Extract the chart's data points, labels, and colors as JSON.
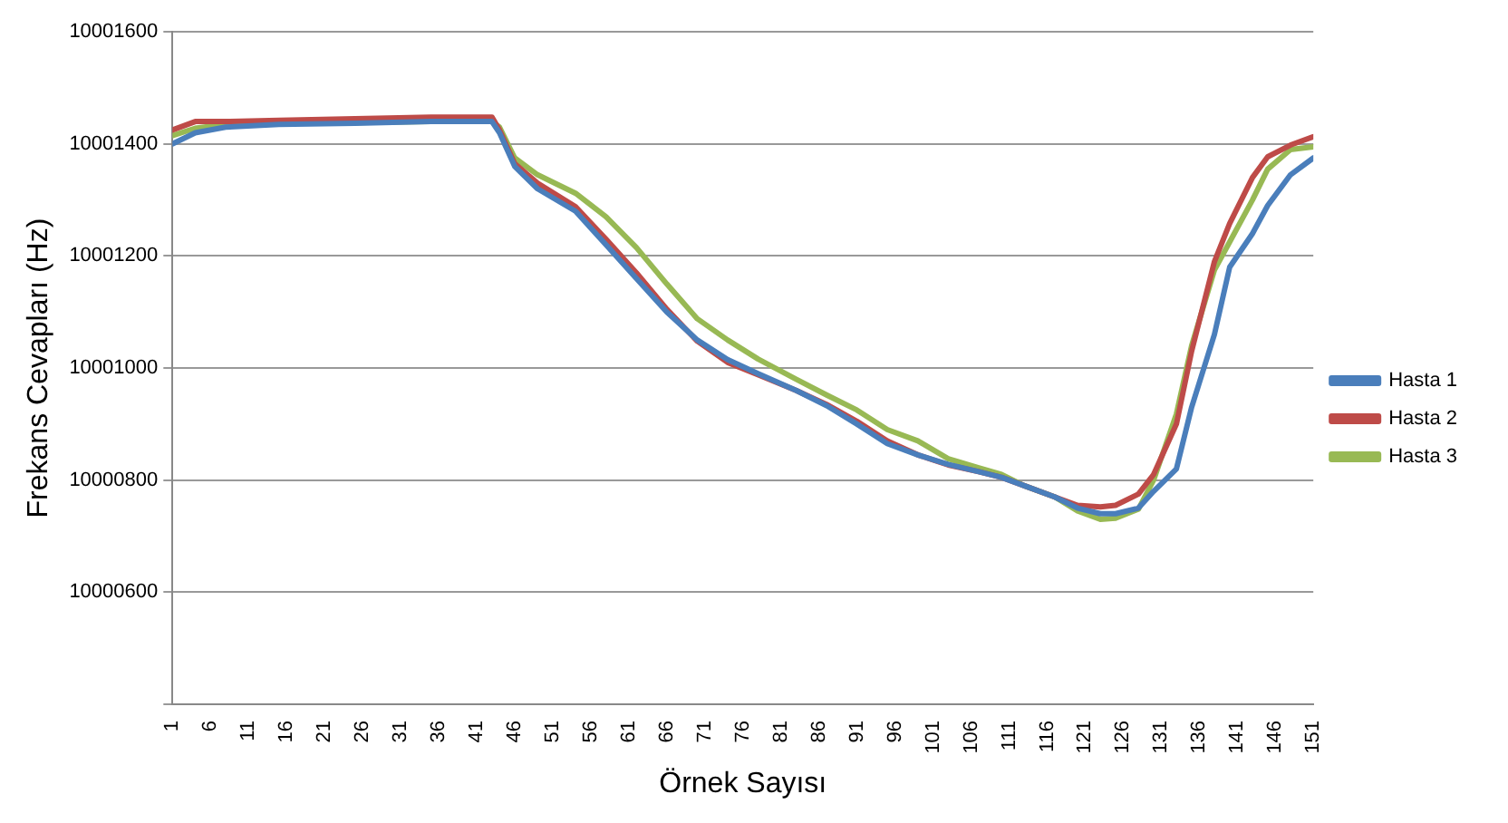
{
  "chart_data": {
    "type": "line",
    "xlabel": "Örnek Sayısı",
    "ylabel": "Frekans Cevapları (Hz)",
    "xlim": [
      1,
      151
    ],
    "xticks": [
      1,
      6,
      11,
      16,
      21,
      26,
      31,
      36,
      41,
      46,
      51,
      56,
      61,
      66,
      71,
      76,
      81,
      86,
      91,
      96,
      101,
      106,
      111,
      116,
      121,
      126,
      131,
      136,
      141,
      146,
      151
    ],
    "ylim": [
      10000400,
      10001600
    ],
    "yticks": [
      {
        "value": 10000400,
        "label": null
      },
      10000600,
      10000800,
      10001000,
      10001200,
      10001400,
      10001600
    ],
    "grid": "y",
    "legend": "right",
    "marker": "none",
    "line_style": "solid",
    "series": [
      {
        "name": "Hasta 1",
        "color": "#4a7ebb",
        "x": [
          1,
          4,
          8,
          15,
          25,
          35,
          43,
          44,
          46,
          49,
          54,
          58,
          62,
          66,
          70,
          74,
          78,
          83,
          87,
          91,
          95,
          99,
          103,
          107,
          110,
          113,
          117,
          120,
          123,
          125,
          128,
          130,
          133,
          135,
          138,
          140,
          143,
          145,
          148,
          151
        ],
        "values": [
          10001400,
          10001420,
          10001430,
          10001435,
          10001437,
          10001440,
          10001440,
          10001420,
          10001360,
          10001320,
          10001280,
          10001220,
          10001160,
          10001100,
          10001050,
          10001015,
          10000990,
          10000960,
          10000933,
          10000900,
          10000865,
          10000845,
          10000828,
          10000815,
          10000805,
          10000790,
          10000770,
          10000750,
          10000740,
          10000740,
          10000750,
          10000780,
          10000820,
          10000930,
          10001060,
          10001180,
          10001240,
          10001290,
          10001345,
          10001375
        ]
      },
      {
        "name": "Hasta 2",
        "color": "#be4b48",
        "x": [
          1,
          4,
          8,
          15,
          25,
          35,
          43,
          44,
          46,
          49,
          54,
          58,
          62,
          66,
          70,
          74,
          78,
          83,
          87,
          91,
          95,
          99,
          103,
          107,
          110,
          113,
          117,
          120,
          123,
          125,
          128,
          130,
          133,
          135,
          138,
          140,
          143,
          145,
          148,
          151
        ],
        "values": [
          10001425,
          10001440,
          10001440,
          10001442,
          10001445,
          10001448,
          10001448,
          10001425,
          10001365,
          10001330,
          10001288,
          10001230,
          10001170,
          10001105,
          10001048,
          10001010,
          10000988,
          10000960,
          10000935,
          10000905,
          10000870,
          10000845,
          10000827,
          10000815,
          10000805,
          10000790,
          10000770,
          10000755,
          10000752,
          10000755,
          10000775,
          10000810,
          10000900,
          10001030,
          10001190,
          10001258,
          10001340,
          10001377,
          10001398,
          10001413
        ]
      },
      {
        "name": "Hasta 3",
        "color": "#98b954",
        "x": [
          1,
          4,
          8,
          15,
          25,
          35,
          43,
          44,
          46,
          49,
          54,
          58,
          62,
          66,
          70,
          74,
          78,
          83,
          87,
          91,
          95,
          99,
          103,
          107,
          110,
          113,
          117,
          120,
          123,
          125,
          128,
          130,
          133,
          135,
          138,
          140,
          143,
          145,
          148,
          151
        ],
        "values": [
          10001415,
          10001428,
          10001435,
          10001437,
          10001438,
          10001440,
          10001440,
          10001430,
          10001375,
          10001345,
          10001312,
          10001270,
          10001215,
          10001150,
          10001088,
          10001050,
          10001016,
          10000980,
          10000952,
          10000925,
          10000890,
          10000870,
          10000838,
          10000822,
          10000810,
          10000790,
          10000770,
          10000745,
          10000730,
          10000732,
          10000748,
          10000800,
          10000918,
          10001040,
          10001175,
          10001225,
          10001300,
          10001355,
          10001390,
          10001395
        ]
      }
    ]
  }
}
